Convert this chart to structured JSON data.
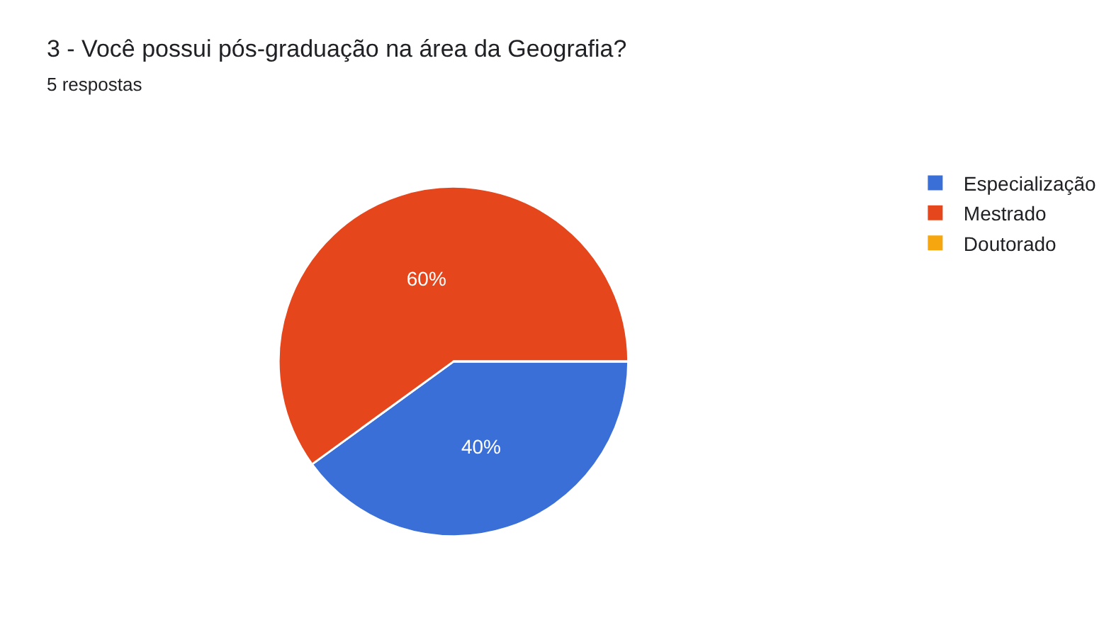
{
  "chart_data": {
    "type": "pie",
    "title": "3 - Você possui pós-graduação na área da Geografia?",
    "subtitle": "5 respostas",
    "categories": [
      "Especialização",
      "Mestrado",
      "Doutorado"
    ],
    "values": [
      40,
      60,
      0
    ],
    "colors": [
      "#3a6fd8",
      "#e5461c",
      "#f6a60f"
    ],
    "value_labels": [
      "40%",
      "60%",
      null
    ],
    "legend": "top right"
  }
}
